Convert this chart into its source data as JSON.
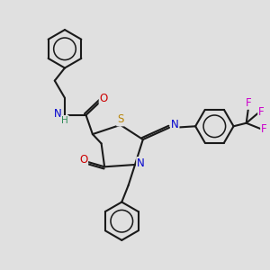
{
  "bg_color": "#e0e0e0",
  "bond_color": "#1a1a1a",
  "bond_width": 1.5,
  "atom_colors": {
    "N": "#0000cc",
    "O": "#cc0000",
    "S": "#b8860b",
    "F": "#cc00cc",
    "H": "#2e8b57"
  },
  "font_size": 8.5,
  "figsize": [
    3.0,
    3.0
  ],
  "dpi": 100
}
